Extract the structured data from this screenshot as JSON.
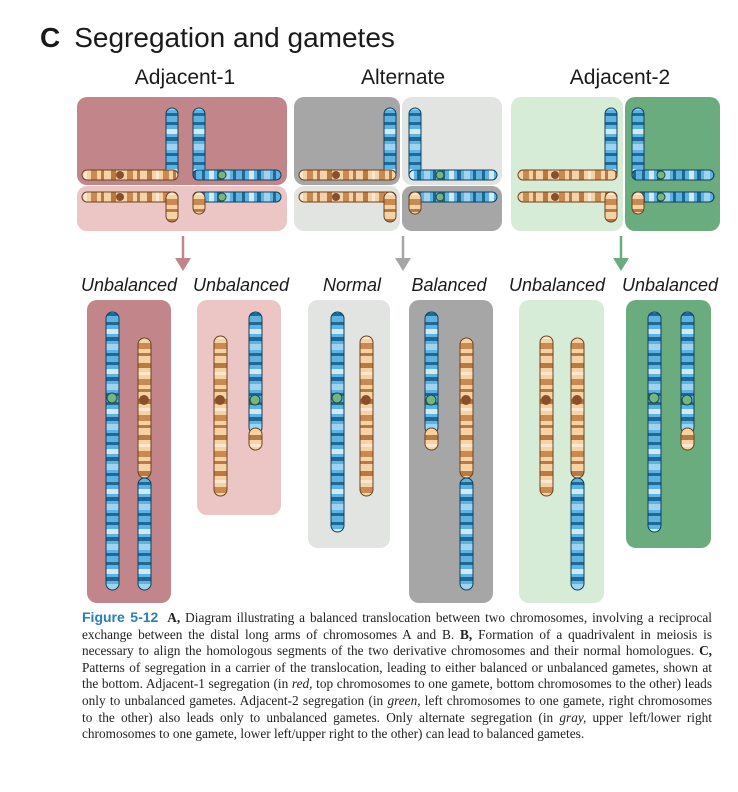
{
  "panel": {
    "letter": "C",
    "title": "Segregation and gametes"
  },
  "columns": [
    {
      "label": "Adjacent-1",
      "color": "#c0868b"
    },
    {
      "label": "Alternate",
      "color": "#a9a9a9"
    },
    {
      "label": "Adjacent-2",
      "color": "#6aaa7e"
    }
  ],
  "gamete_labels": [
    "Unbalanced",
    "Unbalanced",
    "Normal",
    "Balanced",
    "Unbalanced",
    "Unbalanced"
  ],
  "colors": {
    "blue_chromosome": "#5aaee0",
    "orange_chromosome": "#f2c58a",
    "red_strong": "#c2858a",
    "red_light": "#ecc5c5",
    "gray_strong": "#a6a6a6",
    "gray_light": "#e2e4e2",
    "green_light": "#d6ecd7",
    "green_strong": "#6aac7e",
    "caption_blue": "#2a7fb5"
  },
  "caption": {
    "figure": "Figure 5-12",
    "seg1_letter": "A,",
    "seg1_text": " Diagram illustrating a balanced translocation between two chromosomes, involving a reciprocal exchange between the distal long arms of chromosomes A and B. ",
    "seg2_letter": "B,",
    "seg2_text": " Formation of a quadrivalent in meiosis is necessary to align the homologous segments of the two derivative chromosomes and their normal homologues. ",
    "seg3_letter": "C,",
    "seg3_text": " Patterns of segregation in a carrier of the translocation, leading to either balanced or unbalanced gametes, shown at the bottom. Adjacent-1 segregation (in ",
    "seg3_em": "red,",
    "seg4_text": " top chromosomes to one gamete, bottom chromosomes to the other) leads only to unbalanced gametes. Adjacent-2 segregation (in ",
    "seg4_em": "green,",
    "seg5_text": " left chromosomes to one gamete, right chromosomes to the other) also leads only to unbalanced gametes. Only alternate segregation (in ",
    "seg5_em": "gray,",
    "seg6_text": " upper left/lower right chromosomes to one gamete, lower left/upper right to the other) can lead to balanced gametes."
  }
}
